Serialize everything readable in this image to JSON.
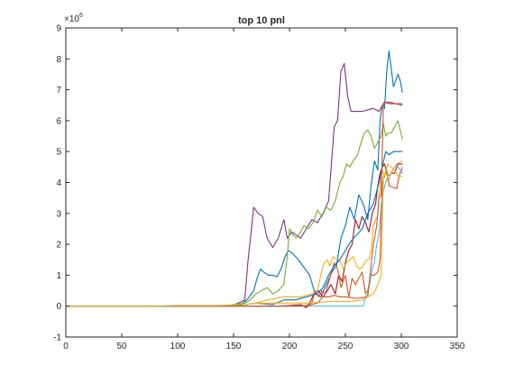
{
  "chart_data": {
    "type": "line",
    "title": "top 10 pnl",
    "xlabel": "",
    "ylabel": "",
    "y_exponent_label": "×10",
    "y_exponent_value": "6",
    "xlim": [
      0,
      350
    ],
    "ylim": [
      -1,
      9
    ],
    "xticks": [
      0,
      50,
      100,
      150,
      200,
      250,
      300,
      350
    ],
    "yticks": [
      -1,
      0,
      1,
      2,
      3,
      4,
      5,
      6,
      7,
      8,
      9
    ],
    "grid": false,
    "legend": "none",
    "series": [
      {
        "color": "#7E2F8E",
        "points": [
          [
            0,
            0
          ],
          [
            80,
            0
          ],
          [
            120,
            0.01
          ],
          [
            150,
            0.03
          ],
          [
            160,
            0.2
          ],
          [
            163,
            1.5
          ],
          [
            166,
            2.5
          ],
          [
            168,
            3.2
          ],
          [
            172,
            3.0
          ],
          [
            176,
            2.9
          ],
          [
            180,
            2.2
          ],
          [
            185,
            1.9
          ],
          [
            190,
            2.2
          ],
          [
            195,
            2.8
          ],
          [
            198,
            2.2
          ],
          [
            202,
            2.4
          ],
          [
            206,
            2.3
          ],
          [
            210,
            2.2
          ],
          [
            215,
            2.5
          ],
          [
            220,
            2.8
          ],
          [
            225,
            2.7
          ],
          [
            230,
            3.0
          ],
          [
            235,
            3.4
          ],
          [
            240,
            5.8
          ],
          [
            243,
            6.0
          ],
          [
            246,
            7.6
          ],
          [
            249,
            7.85
          ],
          [
            252,
            6.8
          ],
          [
            255,
            6.3
          ],
          [
            265,
            6.3
          ],
          [
            275,
            6.4
          ],
          [
            280,
            6.3
          ],
          [
            285,
            6.6
          ],
          [
            290,
            6.55
          ],
          [
            295,
            6.55
          ],
          [
            301,
            6.5
          ]
        ]
      },
      {
        "color": "#0072BD",
        "points": [
          [
            0,
            0
          ],
          [
            150,
            0
          ],
          [
            155,
            0.05
          ],
          [
            158,
            0.1
          ],
          [
            162,
            0.2
          ],
          [
            166,
            0.4
          ],
          [
            168,
            0.5
          ],
          [
            171,
            0.9
          ],
          [
            174,
            1.2
          ],
          [
            177,
            1.1
          ],
          [
            181,
            1.0
          ],
          [
            185,
            1.0
          ],
          [
            189,
            0.95
          ],
          [
            193,
            1.25
          ],
          [
            196,
            1.6
          ],
          [
            199,
            1.8
          ],
          [
            203,
            1.7
          ],
          [
            208,
            1.5
          ],
          [
            212,
            1.3
          ],
          [
            218,
            1.0
          ],
          [
            223,
            0.4
          ],
          [
            228,
            0.3
          ],
          [
            233,
            0.7
          ],
          [
            238,
            1.1
          ],
          [
            242,
            1.3
          ],
          [
            246,
            2.2
          ],
          [
            250,
            2.6
          ],
          [
            254,
            3.2
          ],
          [
            258,
            2.8
          ],
          [
            262,
            3.6
          ],
          [
            266,
            3.3
          ],
          [
            270,
            2.8
          ],
          [
            273,
            3.9
          ],
          [
            276,
            4.7
          ],
          [
            279,
            4.4
          ],
          [
            281,
            6.0
          ],
          [
            283,
            6.5
          ],
          [
            285,
            6.4
          ],
          [
            287,
            7.6
          ],
          [
            289,
            8.25
          ],
          [
            291,
            7.7
          ],
          [
            293,
            7.1
          ],
          [
            295,
            7.3
          ],
          [
            297,
            7.5
          ],
          [
            299,
            7.3
          ],
          [
            301,
            6.9
          ]
        ]
      },
      {
        "color": "#77AC30",
        "points": [
          [
            0,
            0
          ],
          [
            140,
            0
          ],
          [
            150,
            0.05
          ],
          [
            160,
            0.1
          ],
          [
            165,
            0.2
          ],
          [
            170,
            0.4
          ],
          [
            175,
            0.5
          ],
          [
            180,
            0.6
          ],
          [
            185,
            0.4
          ],
          [
            190,
            0.5
          ],
          [
            195,
            0.7
          ],
          [
            198,
            1.6
          ],
          [
            200,
            2.5
          ],
          [
            203,
            2.3
          ],
          [
            206,
            2.2
          ],
          [
            210,
            2.4
          ],
          [
            213,
            2.6
          ],
          [
            217,
            2.5
          ],
          [
            221,
            2.7
          ],
          [
            225,
            3.1
          ],
          [
            229,
            2.9
          ],
          [
            233,
            3.2
          ],
          [
            237,
            3.1
          ],
          [
            241,
            3.4
          ],
          [
            245,
            4.0
          ],
          [
            248,
            4.2
          ],
          [
            251,
            4.6
          ],
          [
            254,
            4.5
          ],
          [
            257,
            4.7
          ],
          [
            261,
            4.9
          ],
          [
            264,
            5.3
          ],
          [
            267,
            5.6
          ],
          [
            270,
            5.7
          ],
          [
            273,
            5.5
          ],
          [
            276,
            5.1
          ],
          [
            279,
            5.3
          ],
          [
            282,
            5.5
          ],
          [
            284,
            5.9
          ],
          [
            286,
            5.5
          ],
          [
            288,
            5.6
          ],
          [
            291,
            5.6
          ],
          [
            294,
            5.8
          ],
          [
            297,
            6.0
          ],
          [
            299,
            5.7
          ],
          [
            301,
            5.4
          ]
        ]
      },
      {
        "color": "#A2142F",
        "points": [
          [
            0,
            0
          ],
          [
            190,
            0
          ],
          [
            200,
            0.02
          ],
          [
            210,
            0.05
          ],
          [
            215,
            -0.05
          ],
          [
            218,
            0.1
          ],
          [
            222,
            0.4
          ],
          [
            226,
            0.5
          ],
          [
            230,
            0.3
          ],
          [
            234,
            0.5
          ],
          [
            237,
            0.7
          ],
          [
            241,
            0.4
          ],
          [
            244,
            1.0
          ],
          [
            247,
            0.8
          ],
          [
            250,
            1.4
          ],
          [
            253,
            1.8
          ],
          [
            256,
            2.0
          ],
          [
            259,
            2.8
          ],
          [
            262,
            2.5
          ],
          [
            265,
            2.9
          ],
          [
            268,
            2.7
          ],
          [
            271,
            2.4
          ],
          [
            274,
            3.0
          ],
          [
            277,
            3.3
          ],
          [
            279,
            3.9
          ],
          [
            281,
            4.3
          ],
          [
            283,
            4.5
          ],
          [
            285,
            4.6
          ],
          [
            288,
            4.2
          ],
          [
            291,
            4.3
          ],
          [
            294,
            4.3
          ],
          [
            297,
            4.6
          ],
          [
            301,
            4.6
          ]
        ]
      },
      {
        "color": "#D95319",
        "points": [
          [
            0,
            0
          ],
          [
            200,
            0
          ],
          [
            215,
            0.02
          ],
          [
            220,
            0.1
          ],
          [
            223,
            0.5
          ],
          [
            226,
            0.3
          ],
          [
            229,
            0.5
          ],
          [
            232,
            0.4
          ],
          [
            236,
            0.9
          ],
          [
            240,
            1.4
          ],
          [
            243,
            1.2
          ],
          [
            246,
            0.6
          ],
          [
            250,
            1.0
          ],
          [
            253,
            0.3
          ],
          [
            256,
            0.9
          ],
          [
            259,
            0.7
          ],
          [
            262,
            0.9
          ],
          [
            265,
            1.1
          ],
          [
            268,
            0.4
          ],
          [
            270,
            0.5
          ],
          [
            273,
            1.0
          ],
          [
            276,
            1.0
          ],
          [
            279,
            1.1
          ],
          [
            281,
            1.5
          ],
          [
            283,
            4.0
          ],
          [
            285,
            4.2
          ],
          [
            287,
            4.4
          ],
          [
            289,
            3.9
          ],
          [
            292,
            3.85
          ],
          [
            296,
            3.8
          ],
          [
            298,
            4.2
          ],
          [
            301,
            4.5
          ]
        ]
      },
      {
        "color": "#EDB120",
        "points": [
          [
            0,
            0
          ],
          [
            100,
            0
          ],
          [
            150,
            0
          ],
          [
            170,
            0.1
          ],
          [
            180,
            0.2
          ],
          [
            195,
            0.3
          ],
          [
            210,
            0.3
          ],
          [
            220,
            0.4
          ],
          [
            225,
            0.5
          ],
          [
            228,
            1.0
          ],
          [
            231,
            1.4
          ],
          [
            234,
            1.5
          ],
          [
            236,
            1.3
          ],
          [
            239,
            1.6
          ],
          [
            242,
            1.5
          ],
          [
            245,
            1.5
          ],
          [
            248,
            1.2
          ],
          [
            251,
            1.4
          ],
          [
            254,
            1.5
          ],
          [
            257,
            1.6
          ],
          [
            260,
            1.3
          ],
          [
            263,
            1.2
          ],
          [
            266,
            1.3
          ],
          [
            269,
            1.5
          ],
          [
            271,
            1.5
          ],
          [
            273,
            1.8
          ],
          [
            275,
            2.6
          ],
          [
            277,
            2.8
          ],
          [
            279,
            2.9
          ],
          [
            281,
            4.0
          ],
          [
            283,
            4.4
          ],
          [
            285,
            4.2
          ],
          [
            288,
            4.6
          ],
          [
            291,
            4.5
          ],
          [
            294,
            4.4
          ],
          [
            297,
            4.2
          ],
          [
            301,
            4.2
          ]
        ]
      },
      {
        "color": "#4DBEEE",
        "points": [
          [
            0,
            0
          ],
          [
            240,
            0
          ],
          [
            260,
            0
          ],
          [
            266,
            0
          ],
          [
            268,
            0.3
          ],
          [
            270,
            0.4
          ],
          [
            272,
            0.8
          ],
          [
            274,
            1.2
          ],
          [
            276,
            1.4
          ],
          [
            278,
            2.0
          ],
          [
            280,
            2.3
          ],
          [
            282,
            3.3
          ],
          [
            284,
            3.7
          ],
          [
            286,
            4.0
          ],
          [
            288,
            4.2
          ],
          [
            291,
            4.3
          ],
          [
            294,
            4.5
          ],
          [
            297,
            4.5
          ],
          [
            301,
            4.3
          ]
        ]
      },
      {
        "color": "#0072BD",
        "points": [
          [
            0,
            0
          ],
          [
            150,
            0
          ],
          [
            170,
            0.1
          ],
          [
            185,
            0.05
          ],
          [
            195,
            0.2
          ],
          [
            205,
            0.2
          ],
          [
            215,
            0.3
          ],
          [
            225,
            0.4
          ],
          [
            230,
            0.6
          ],
          [
            235,
            1.0
          ],
          [
            240,
            1.3
          ],
          [
            245,
            1.5
          ],
          [
            250,
            1.8
          ],
          [
            255,
            2.1
          ],
          [
            260,
            2.3
          ],
          [
            265,
            2.5
          ],
          [
            270,
            3.0
          ],
          [
            275,
            3.3
          ],
          [
            280,
            4.0
          ],
          [
            283,
            4.5
          ],
          [
            286,
            5.0
          ],
          [
            289,
            4.9
          ],
          [
            293,
            5.0
          ],
          [
            297,
            5.0
          ],
          [
            301,
            5.0
          ]
        ]
      },
      {
        "color": "#D95319",
        "points": [
          [
            0,
            0
          ],
          [
            200,
            0
          ],
          [
            215,
            0
          ],
          [
            225,
            0.1
          ],
          [
            230,
            0.3
          ],
          [
            235,
            0.3
          ],
          [
            240,
            0.35
          ],
          [
            245,
            0.3
          ],
          [
            250,
            0.3
          ],
          [
            260,
            0.25
          ],
          [
            270,
            0.3
          ],
          [
            275,
            2.0
          ],
          [
            278,
            2.6
          ],
          [
            280,
            3.5
          ],
          [
            282,
            3.6
          ],
          [
            284,
            6.5
          ],
          [
            286,
            6.6
          ],
          [
            290,
            6.6
          ],
          [
            295,
            6.55
          ],
          [
            301,
            6.55
          ]
        ]
      },
      {
        "color": "#EDB120",
        "points": [
          [
            0,
            0
          ],
          [
            80,
            0
          ],
          [
            100,
            0.02
          ],
          [
            120,
            0.02
          ],
          [
            140,
            0.02
          ],
          [
            150,
            0.03
          ],
          [
            160,
            0.05
          ],
          [
            170,
            0.1
          ],
          [
            180,
            0.1
          ],
          [
            200,
            0.1
          ],
          [
            215,
            0.1
          ],
          [
            225,
            0.12
          ],
          [
            235,
            0.15
          ],
          [
            245,
            0.15
          ],
          [
            255,
            0.15
          ],
          [
            265,
            0.2
          ],
          [
            270,
            0.3
          ],
          [
            275,
            0.4
          ],
          [
            278,
            0.6
          ],
          [
            280,
            0.8
          ],
          [
            282,
            1.0
          ],
          [
            284,
            4.2
          ],
          [
            286,
            4.3
          ],
          [
            289,
            4.1
          ],
          [
            292,
            4.4
          ],
          [
            296,
            4.6
          ],
          [
            301,
            4.7
          ]
        ]
      }
    ]
  }
}
